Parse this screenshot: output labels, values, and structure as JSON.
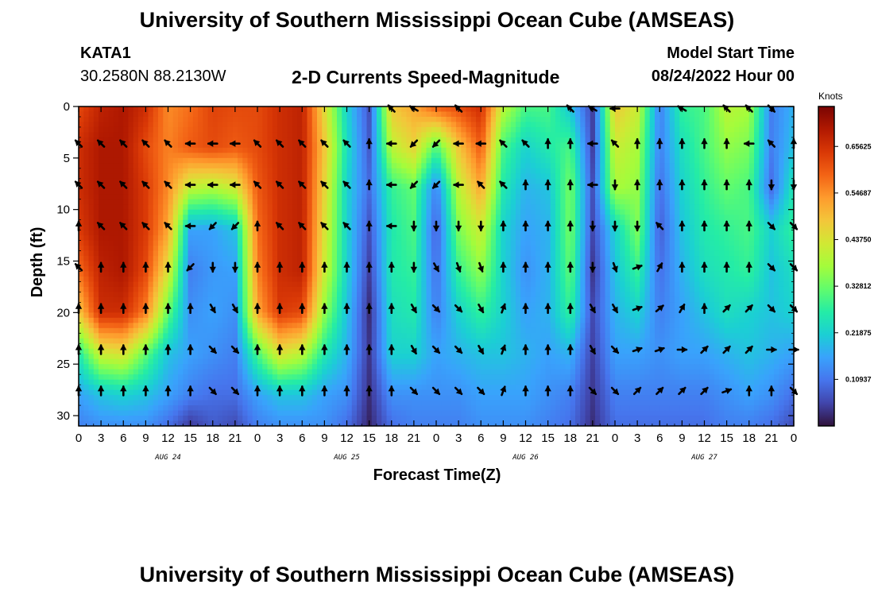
{
  "header": {
    "title": "University of Southern Mississippi Ocean Cube (AMSEAS)",
    "station": "KATA1",
    "coordinates": "30.2580N  88.2130W",
    "subtitle": "2-D Currents Speed-Magnitude",
    "model_start_label": "Model Start Time",
    "model_start_value": "08/24/2022 Hour 00"
  },
  "footer": {
    "title": "University of Southern Mississippi Ocean Cube (AMSEAS)"
  },
  "chart_data": {
    "type": "heatmap",
    "title": "2-D Currents Speed-Magnitude",
    "xlabel": "Forecast Time(Z)",
    "ylabel": "Depth (ft)",
    "xlim": [
      0,
      96
    ],
    "ylim": [
      31,
      0
    ],
    "x_ticks": [
      0,
      3,
      6,
      9,
      12,
      15,
      18,
      21,
      24,
      27,
      30,
      33,
      36,
      39,
      42,
      45,
      48,
      51,
      54,
      57,
      60,
      63,
      66,
      69,
      72,
      75,
      78,
      81,
      84,
      87,
      90,
      93,
      96
    ],
    "x_tick_labels": [
      "0",
      "3",
      "6",
      "9",
      "12",
      "15",
      "18",
      "21",
      "0",
      "3",
      "6",
      "9",
      "12",
      "15",
      "18",
      "21",
      "0",
      "3",
      "6",
      "9",
      "12",
      "15",
      "18",
      "21",
      "0",
      "3",
      "6",
      "9",
      "12",
      "15",
      "18",
      "21",
      "0"
    ],
    "y_ticks": [
      0,
      5,
      10,
      15,
      20,
      25,
      30
    ],
    "y_tick_labels": [
      "0",
      "5",
      "10",
      "15",
      "20",
      "25",
      "30"
    ],
    "date_labels": [
      {
        "hour": 12,
        "label": "AUG 24"
      },
      {
        "hour": 36,
        "label": "AUG 25"
      },
      {
        "hour": 60,
        "label": "AUG 26"
      },
      {
        "hour": 84,
        "label": "AUG 27"
      }
    ],
    "colorbar": {
      "unit": "Knots",
      "min": 0,
      "max": 0.75,
      "ticks": [
        "0.65625",
        "0.54687",
        "0.43750",
        "0.32812",
        "0.21875",
        "0.10937"
      ],
      "tick_values": [
        0.65625,
        0.546875,
        0.4375,
        0.328125,
        0.21875,
        0.109375
      ],
      "colors": [
        "#30123b",
        "#4145ab",
        "#4675ed",
        "#39a2fc",
        "#1bcfd4",
        "#24eca6",
        "#61fc6c",
        "#a4fc3b",
        "#d1e834",
        "#f3c63a",
        "#fe9b2d",
        "#f36315",
        "#d93806",
        "#b11901",
        "#7a0402"
      ]
    },
    "columns_hours": [
      0,
      3,
      6,
      9,
      12,
      15,
      18,
      21,
      24,
      27,
      30,
      33,
      36,
      39,
      42,
      45,
      48,
      51,
      54,
      57,
      60,
      63,
      66,
      69,
      72,
      75,
      78,
      81,
      84,
      87,
      90,
      93,
      96
    ],
    "depth_rows_ft": [
      0,
      4,
      8,
      12,
      16,
      20,
      24,
      28,
      31
    ],
    "speed_knots": [
      [
        0.62,
        0.68,
        0.7,
        0.66,
        0.55,
        0.58,
        0.63,
        0.62,
        0.62,
        0.66,
        0.68,
        0.45,
        0.22,
        0.07,
        0.48,
        0.52,
        0.6,
        0.62,
        0.66,
        0.4,
        0.3,
        0.3,
        0.2,
        0.05,
        0.48,
        0.42,
        0.12,
        0.28,
        0.3,
        0.4,
        0.38,
        0.12,
        0.18
      ],
      [
        0.66,
        0.7,
        0.7,
        0.62,
        0.56,
        0.6,
        0.62,
        0.6,
        0.62,
        0.66,
        0.68,
        0.48,
        0.24,
        0.08,
        0.4,
        0.46,
        0.3,
        0.48,
        0.6,
        0.3,
        0.22,
        0.26,
        0.3,
        0.05,
        0.42,
        0.38,
        0.12,
        0.24,
        0.3,
        0.36,
        0.34,
        0.12,
        0.2
      ],
      [
        0.66,
        0.7,
        0.7,
        0.64,
        0.55,
        0.4,
        0.38,
        0.42,
        0.6,
        0.66,
        0.68,
        0.46,
        0.22,
        0.1,
        0.28,
        0.32,
        0.12,
        0.4,
        0.52,
        0.26,
        0.18,
        0.2,
        0.34,
        0.07,
        0.38,
        0.36,
        0.1,
        0.22,
        0.28,
        0.32,
        0.3,
        0.1,
        0.26
      ],
      [
        0.64,
        0.7,
        0.7,
        0.64,
        0.52,
        0.16,
        0.16,
        0.2,
        0.58,
        0.66,
        0.68,
        0.44,
        0.22,
        0.07,
        0.26,
        0.3,
        0.08,
        0.34,
        0.42,
        0.22,
        0.16,
        0.18,
        0.34,
        0.06,
        0.22,
        0.34,
        0.08,
        0.2,
        0.26,
        0.28,
        0.3,
        0.22,
        0.28
      ],
      [
        0.58,
        0.68,
        0.7,
        0.62,
        0.44,
        0.12,
        0.15,
        0.16,
        0.56,
        0.66,
        0.68,
        0.42,
        0.22,
        0.05,
        0.26,
        0.28,
        0.1,
        0.28,
        0.36,
        0.22,
        0.14,
        0.18,
        0.32,
        0.04,
        0.2,
        0.28,
        0.1,
        0.18,
        0.24,
        0.26,
        0.28,
        0.2,
        0.24
      ],
      [
        0.48,
        0.66,
        0.66,
        0.56,
        0.32,
        0.14,
        0.16,
        0.14,
        0.52,
        0.64,
        0.62,
        0.36,
        0.2,
        0.03,
        0.24,
        0.26,
        0.12,
        0.22,
        0.28,
        0.22,
        0.16,
        0.18,
        0.28,
        0.06,
        0.18,
        0.22,
        0.12,
        0.16,
        0.2,
        0.24,
        0.22,
        0.2,
        0.22
      ],
      [
        0.26,
        0.42,
        0.44,
        0.32,
        0.2,
        0.16,
        0.14,
        0.12,
        0.3,
        0.44,
        0.4,
        0.26,
        0.18,
        0.04,
        0.22,
        0.22,
        0.16,
        0.18,
        0.2,
        0.2,
        0.18,
        0.16,
        0.18,
        0.05,
        0.16,
        0.16,
        0.14,
        0.16,
        0.16,
        0.18,
        0.2,
        0.18,
        0.16
      ],
      [
        0.16,
        0.2,
        0.22,
        0.2,
        0.16,
        0.12,
        0.1,
        0.1,
        0.16,
        0.2,
        0.2,
        0.16,
        0.14,
        0.03,
        0.14,
        0.14,
        0.14,
        0.14,
        0.16,
        0.16,
        0.16,
        0.14,
        0.12,
        0.04,
        0.12,
        0.12,
        0.12,
        0.12,
        0.12,
        0.14,
        0.16,
        0.14,
        0.1
      ],
      [
        0.12,
        0.14,
        0.14,
        0.14,
        0.1,
        0.04,
        0.08,
        0.06,
        0.12,
        0.14,
        0.14,
        0.14,
        0.1,
        0.02,
        0.1,
        0.12,
        0.12,
        0.12,
        0.14,
        0.14,
        0.14,
        0.12,
        0.1,
        0.03,
        0.1,
        0.1,
        0.1,
        0.1,
        0.1,
        0.12,
        0.12,
        0.1,
        0.06
      ]
    ],
    "arrow_rows_ft": [
      3.6,
      7.6,
      11.6,
      15.6,
      19.6,
      23.6,
      27.6
    ],
    "arrow_direction_deg": [
      [
        315,
        315,
        315,
        315,
        315,
        270,
        270,
        270,
        315,
        315,
        315,
        315,
        315,
        0,
        270,
        225,
        225,
        270,
        270,
        315,
        315,
        0,
        0,
        270,
        315,
        0,
        0,
        0,
        0,
        0,
        270,
        315,
        0
      ],
      [
        315,
        315,
        315,
        315,
        315,
        270,
        270,
        270,
        315,
        315,
        315,
        315,
        315,
        0,
        270,
        225,
        225,
        270,
        315,
        315,
        0,
        0,
        0,
        270,
        180,
        0,
        0,
        0,
        0,
        0,
        0,
        180,
        180
      ],
      [
        0,
        315,
        315,
        315,
        315,
        270,
        225,
        225,
        0,
        315,
        315,
        315,
        315,
        0,
        270,
        180,
        180,
        180,
        180,
        0,
        0,
        0,
        0,
        180,
        180,
        180,
        315,
        0,
        0,
        0,
        0,
        135,
        135
      ],
      [
        315,
        0,
        0,
        0,
        0,
        225,
        180,
        180,
        0,
        0,
        0,
        0,
        0,
        0,
        0,
        180,
        150,
        160,
        160,
        0,
        0,
        0,
        0,
        180,
        160,
        70,
        30,
        0,
        0,
        0,
        0,
        135,
        135
      ],
      [
        0,
        0,
        0,
        0,
        0,
        0,
        150,
        150,
        0,
        0,
        0,
        0,
        0,
        0,
        0,
        150,
        135,
        135,
        150,
        20,
        0,
        0,
        0,
        150,
        150,
        70,
        50,
        30,
        0,
        45,
        45,
        135,
        135
      ],
      [
        0,
        0,
        0,
        0,
        0,
        0,
        135,
        135,
        0,
        0,
        0,
        0,
        0,
        0,
        0,
        150,
        135,
        135,
        150,
        20,
        0,
        0,
        0,
        150,
        135,
        70,
        70,
        90,
        45,
        45,
        45,
        90,
        90
      ],
      [
        0,
        0,
        0,
        0,
        0,
        0,
        135,
        135,
        0,
        0,
        0,
        0,
        0,
        0,
        0,
        135,
        135,
        135,
        135,
        20,
        0,
        0,
        0,
        135,
        135,
        45,
        45,
        45,
        45,
        70,
        0,
        0,
        135
      ]
    ],
    "top_arrows": [
      {
        "hour": 42,
        "direction_deg": 315
      },
      {
        "hour": 45,
        "direction_deg": 300
      },
      {
        "hour": 51,
        "direction_deg": 315
      },
      {
        "hour": 66,
        "direction_deg": 315
      },
      {
        "hour": 69,
        "direction_deg": 300
      },
      {
        "hour": 72,
        "direction_deg": 270
      },
      {
        "hour": 81,
        "direction_deg": 300
      },
      {
        "hour": 87,
        "direction_deg": 315
      },
      {
        "hour": 90,
        "direction_deg": 315
      },
      {
        "hour": 93,
        "direction_deg": 135
      }
    ]
  }
}
